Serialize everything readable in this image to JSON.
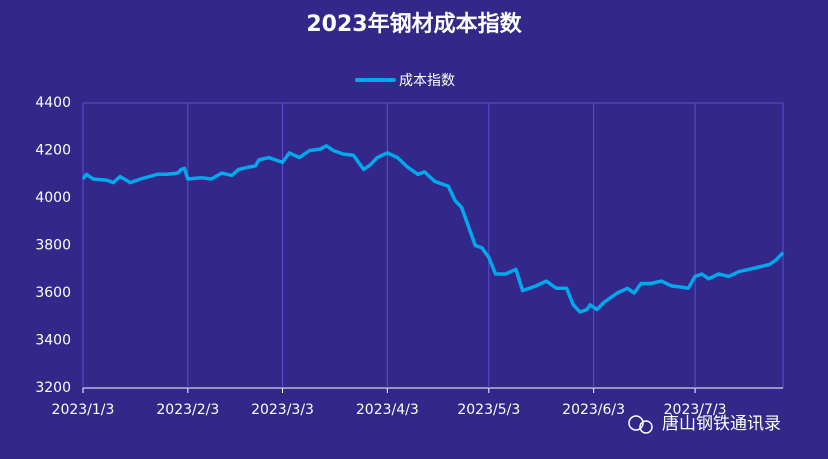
{
  "chart_data": {
    "type": "line",
    "title": "2023年钢材成本指数",
    "x": [
      "2023/1/3",
      "2023/1/4",
      "2023/1/6",
      "2023/1/10",
      "2023/1/12",
      "2023/1/14",
      "2023/1/17",
      "2023/1/20",
      "2023/1/25",
      "2023/1/28",
      "2023/1/31",
      "2023/2/1",
      "2023/2/2",
      "2023/2/3",
      "2023/2/7",
      "2023/2/10",
      "2023/2/13",
      "2023/2/16",
      "2023/2/18",
      "2023/2/21",
      "2023/2/23",
      "2023/2/24",
      "2023/2/27",
      "2023/3/1",
      "2023/3/3",
      "2023/3/5",
      "2023/3/8",
      "2023/3/11",
      "2023/3/14",
      "2023/3/16",
      "2023/3/18",
      "2023/3/21",
      "2023/3/24",
      "2023/3/27",
      "2023/3/29",
      "2023/3/31",
      "2023/4/3",
      "2023/4/6",
      "2023/4/9",
      "2023/4/12",
      "2023/4/14",
      "2023/4/17",
      "2023/4/19",
      "2023/4/21",
      "2023/4/23",
      "2023/4/25",
      "2023/4/27",
      "2023/4/29",
      "2023/5/1",
      "2023/5/3",
      "2023/5/5",
      "2023/5/8",
      "2023/5/11",
      "2023/5/13",
      "2023/5/17",
      "2023/5/20",
      "2023/5/23",
      "2023/5/26",
      "2023/5/28",
      "2023/5/30",
      "2023/6/1",
      "2023/6/2",
      "2023/6/4",
      "2023/6/6",
      "2023/6/8",
      "2023/6/10",
      "2023/6/13",
      "2023/6/15",
      "2023/6/17",
      "2023/6/20",
      "2023/6/23",
      "2023/6/26",
      "2023/6/29",
      "2023/7/1",
      "2023/7/3",
      "2023/7/5",
      "2023/7/7",
      "2023/7/10",
      "2023/7/13",
      "2023/7/16",
      "2023/7/19",
      "2023/7/22",
      "2023/7/25",
      "2023/7/27",
      "2023/7/29"
    ],
    "series": [
      {
        "name": "成本指数",
        "color": "#00a8ec",
        "values": [
          4080,
          4100,
          4080,
          4075,
          4065,
          4090,
          4065,
          4080,
          4100,
          4100,
          4105,
          4120,
          4125,
          4080,
          4085,
          4080,
          4105,
          4095,
          4120,
          4130,
          4135,
          4160,
          4170,
          4160,
          4150,
          4190,
          4170,
          4200,
          4205,
          4220,
          4200,
          4185,
          4180,
          4120,
          4140,
          4170,
          4190,
          4170,
          4130,
          4100,
          4110,
          4070,
          4060,
          4050,
          3990,
          3960,
          3880,
          3800,
          3790,
          3750,
          3680,
          3680,
          3700,
          3610,
          3630,
          3650,
          3620,
          3620,
          3550,
          3520,
          3530,
          3550,
          3530,
          3560,
          3580,
          3600,
          3620,
          3600,
          3640,
          3640,
          3650,
          3630,
          3625,
          3620,
          3670,
          3680,
          3660,
          3680,
          3670,
          3690,
          3700,
          3710,
          3720,
          3740,
          3770
        ]
      }
    ],
    "xlim": [
      "2023/1/3",
      "2023/7/29"
    ],
    "xticks": [
      "2023/1/3",
      "2023/2/3",
      "2023/3/3",
      "2023/4/3",
      "2023/5/3",
      "2023/6/3",
      "2023/7/3"
    ],
    "ylim": [
      3200,
      4400
    ],
    "yticks": [
      3200,
      3400,
      3600,
      3800,
      4000,
      4200,
      4400
    ],
    "grid": "x",
    "legend": "top"
  },
  "watermark": "唐山钢铁通讯录"
}
